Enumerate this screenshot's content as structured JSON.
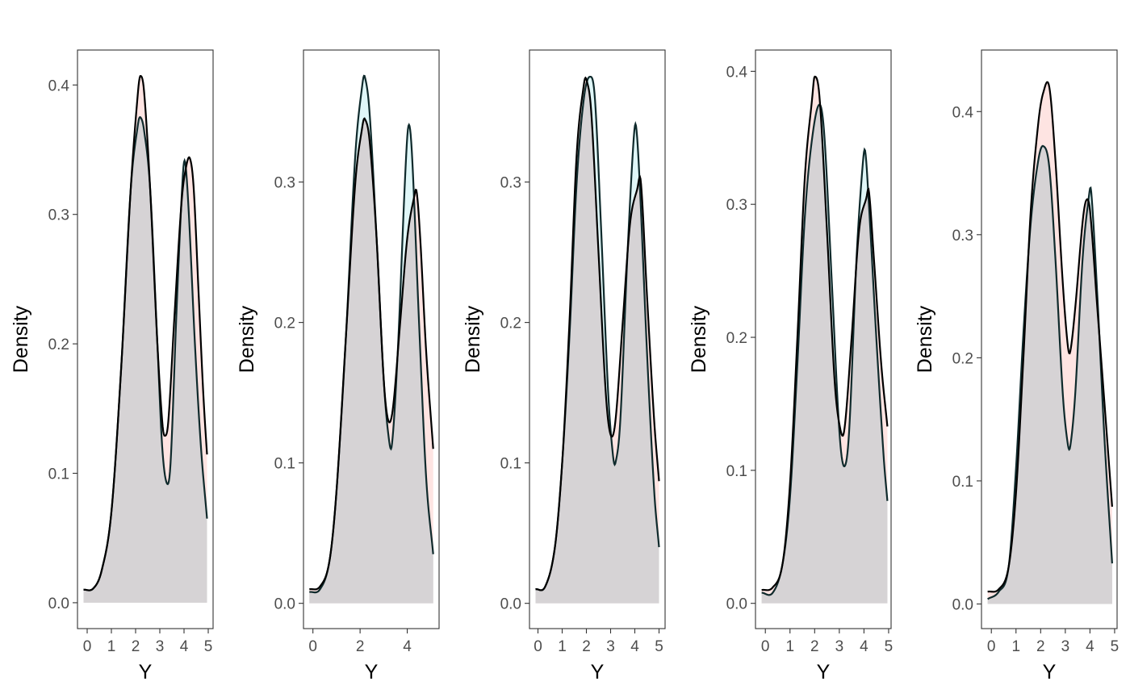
{
  "colors": {
    "fill_a": "#F8766D",
    "fill_b": "#00BFC4",
    "overlap": "#d6d3d5",
    "curve": "#000000",
    "curve_b": "#0f2a2c",
    "panel_border": "#333333",
    "tick": "#333333"
  },
  "chart_data": [
    {
      "type": "area",
      "xlabel": "Y",
      "ylabel": "Density",
      "xlim": [
        -0.4,
        5.2
      ],
      "ylim": [
        -0.02,
        0.427
      ],
      "x_ticks": [
        "0",
        "1",
        "2",
        "3",
        "4",
        "5"
      ],
      "y_ticks": [
        "0.0",
        "0.1",
        "0.2",
        "0.3",
        "0.4"
      ],
      "series": [
        {
          "points": [
            [
              -0.15,
              0.01
            ],
            [
              0.25,
              0.011
            ],
            [
              0.6,
              0.025
            ],
            [
              1.0,
              0.07
            ],
            [
              1.4,
              0.18
            ],
            [
              1.8,
              0.32
            ],
            [
              2.1,
              0.395
            ],
            [
              2.2,
              0.407
            ],
            [
              2.35,
              0.395
            ],
            [
              2.6,
              0.32
            ],
            [
              2.9,
              0.2
            ],
            [
              3.1,
              0.14
            ],
            [
              3.2,
              0.129
            ],
            [
              3.35,
              0.14
            ],
            [
              3.6,
              0.22
            ],
            [
              3.9,
              0.31
            ],
            [
              4.1,
              0.338
            ],
            [
              4.25,
              0.343
            ],
            [
              4.4,
              0.32
            ],
            [
              4.6,
              0.24
            ],
            [
              4.8,
              0.16
            ],
            [
              5.0,
              0.1
            ]
          ]
        },
        {
          "points": [
            [
              -0.15,
              0.01
            ],
            [
              0.25,
              0.011
            ],
            [
              0.6,
              0.025
            ],
            [
              1.0,
              0.07
            ],
            [
              1.4,
              0.18
            ],
            [
              1.8,
              0.32
            ],
            [
              2.1,
              0.37
            ],
            [
              2.2,
              0.375
            ],
            [
              2.35,
              0.365
            ],
            [
              2.6,
              0.32
            ],
            [
              2.9,
              0.2
            ],
            [
              3.1,
              0.12
            ],
            [
              3.3,
              0.092
            ],
            [
              3.45,
              0.11
            ],
            [
              3.7,
              0.23
            ],
            [
              3.95,
              0.33
            ],
            [
              4.05,
              0.34
            ],
            [
              4.2,
              0.3
            ],
            [
              4.45,
              0.2
            ],
            [
              4.7,
              0.12
            ],
            [
              4.95,
              0.065
            ]
          ]
        }
      ]
    },
    {
      "type": "area",
      "xlabel": "Y",
      "ylabel": "Density",
      "xlim": [
        -0.4,
        5.35
      ],
      "ylim": [
        -0.018,
        0.394
      ],
      "x_ticks": [
        "0",
        "2",
        "4"
      ],
      "y_ticks": [
        "0.0",
        "0.1",
        "0.2",
        "0.3"
      ],
      "series": [
        {
          "points": [
            [
              -0.15,
              0.01
            ],
            [
              0.3,
              0.012
            ],
            [
              0.7,
              0.03
            ],
            [
              1.0,
              0.08
            ],
            [
              1.4,
              0.19
            ],
            [
              1.8,
              0.3
            ],
            [
              2.1,
              0.34
            ],
            [
              2.2,
              0.345
            ],
            [
              2.4,
              0.33
            ],
            [
              2.7,
              0.26
            ],
            [
              3.0,
              0.16
            ],
            [
              3.2,
              0.13
            ],
            [
              3.4,
              0.14
            ],
            [
              3.7,
              0.2
            ],
            [
              4.0,
              0.26
            ],
            [
              4.3,
              0.29
            ],
            [
              4.4,
              0.293
            ],
            [
              4.55,
              0.26
            ],
            [
              4.8,
              0.18
            ],
            [
              5.1,
              0.11
            ]
          ]
        },
        {
          "points": [
            [
              -0.15,
              0.008
            ],
            [
              0.3,
              0.01
            ],
            [
              0.7,
              0.03
            ],
            [
              1.0,
              0.08
            ],
            [
              1.4,
              0.19
            ],
            [
              1.8,
              0.32
            ],
            [
              2.1,
              0.37
            ],
            [
              2.2,
              0.375
            ],
            [
              2.4,
              0.35
            ],
            [
              2.7,
              0.26
            ],
            [
              3.0,
              0.16
            ],
            [
              3.2,
              0.12
            ],
            [
              3.35,
              0.113
            ],
            [
              3.6,
              0.18
            ],
            [
              3.9,
              0.3
            ],
            [
              4.05,
              0.34
            ],
            [
              4.2,
              0.32
            ],
            [
              4.5,
              0.2
            ],
            [
              4.8,
              0.09
            ],
            [
              5.1,
              0.035
            ]
          ]
        }
      ]
    },
    {
      "type": "area",
      "xlabel": "Y",
      "ylabel": "Density",
      "xlim": [
        -0.35,
        5.25
      ],
      "ylim": [
        -0.018,
        0.394
      ],
      "x_ticks": [
        "0",
        "1",
        "2",
        "3",
        "4",
        "5"
      ],
      "y_ticks": [
        "0.0",
        "0.1",
        "0.2",
        "0.3"
      ],
      "series": [
        {
          "points": [
            [
              -0.1,
              0.01
            ],
            [
              0.3,
              0.012
            ],
            [
              0.7,
              0.04
            ],
            [
              1.0,
              0.1
            ],
            [
              1.3,
              0.2
            ],
            [
              1.6,
              0.32
            ],
            [
              1.9,
              0.37
            ],
            [
              2.0,
              0.373
            ],
            [
              2.2,
              0.35
            ],
            [
              2.5,
              0.25
            ],
            [
              2.8,
              0.15
            ],
            [
              3.0,
              0.12
            ],
            [
              3.2,
              0.13
            ],
            [
              3.5,
              0.2
            ],
            [
              3.8,
              0.27
            ],
            [
              4.1,
              0.295
            ],
            [
              4.25,
              0.3
            ],
            [
              4.5,
              0.22
            ],
            [
              4.8,
              0.13
            ],
            [
              5.0,
              0.087
            ]
          ]
        },
        {
          "points": [
            [
              -0.1,
              0.01
            ],
            [
              0.3,
              0.012
            ],
            [
              0.7,
              0.04
            ],
            [
              1.0,
              0.1
            ],
            [
              1.3,
              0.19
            ],
            [
              1.6,
              0.3
            ],
            [
              1.9,
              0.36
            ],
            [
              2.15,
              0.375
            ],
            [
              2.35,
              0.36
            ],
            [
              2.6,
              0.27
            ],
            [
              2.9,
              0.15
            ],
            [
              3.1,
              0.105
            ],
            [
              3.2,
              0.1
            ],
            [
              3.4,
              0.13
            ],
            [
              3.7,
              0.25
            ],
            [
              3.95,
              0.33
            ],
            [
              4.05,
              0.34
            ],
            [
              4.2,
              0.3
            ],
            [
              4.5,
              0.18
            ],
            [
              4.8,
              0.08
            ],
            [
              5.0,
              0.04
            ]
          ]
        }
      ]
    },
    {
      "type": "area",
      "xlabel": "Y",
      "ylabel": "Density",
      "xlim": [
        -0.4,
        5.1
      ],
      "ylim": [
        -0.019,
        0.416
      ],
      "x_ticks": [
        "0",
        "1",
        "2",
        "3",
        "4",
        "5"
      ],
      "y_ticks": [
        "0.0",
        "0.1",
        "0.2",
        "0.3",
        "0.4"
      ],
      "series": [
        {
          "points": [
            [
              -0.15,
              0.01
            ],
            [
              0.3,
              0.012
            ],
            [
              0.7,
              0.03
            ],
            [
              1.0,
              0.09
            ],
            [
              1.3,
              0.2
            ],
            [
              1.6,
              0.32
            ],
            [
              1.9,
              0.38
            ],
            [
              2.0,
              0.396
            ],
            [
              2.2,
              0.38
            ],
            [
              2.5,
              0.28
            ],
            [
              2.8,
              0.17
            ],
            [
              3.0,
              0.135
            ],
            [
              3.2,
              0.13
            ],
            [
              3.5,
              0.2
            ],
            [
              3.8,
              0.28
            ],
            [
              4.1,
              0.305
            ],
            [
              4.2,
              0.31
            ],
            [
              4.4,
              0.26
            ],
            [
              4.7,
              0.18
            ],
            [
              4.95,
              0.133
            ]
          ]
        },
        {
          "points": [
            [
              -0.15,
              0.008
            ],
            [
              0.3,
              0.008
            ],
            [
              0.7,
              0.03
            ],
            [
              1.0,
              0.08
            ],
            [
              1.3,
              0.18
            ],
            [
              1.6,
              0.29
            ],
            [
              1.9,
              0.35
            ],
            [
              2.2,
              0.375
            ],
            [
              2.4,
              0.35
            ],
            [
              2.7,
              0.24
            ],
            [
              3.0,
              0.13
            ],
            [
              3.2,
              0.103
            ],
            [
              3.4,
              0.13
            ],
            [
              3.7,
              0.26
            ],
            [
              3.95,
              0.33
            ],
            [
              4.05,
              0.34
            ],
            [
              4.2,
              0.3
            ],
            [
              4.5,
              0.2
            ],
            [
              4.8,
              0.11
            ],
            [
              4.95,
              0.077
            ]
          ]
        }
      ]
    },
    {
      "type": "area",
      "xlabel": "Y",
      "ylabel": "Density",
      "xlim": [
        -0.4,
        5.1
      ],
      "ylim": [
        -0.02,
        0.45
      ],
      "x_ticks": [
        "0",
        "1",
        "2",
        "3",
        "4",
        "5"
      ],
      "y_ticks": [
        "0.0",
        "0.1",
        "0.2",
        "0.3",
        "0.4"
      ],
      "series": [
        {
          "points": [
            [
              -0.15,
              0.01
            ],
            [
              0.3,
              0.012
            ],
            [
              0.7,
              0.03
            ],
            [
              1.0,
              0.09
            ],
            [
              1.3,
              0.2
            ],
            [
              1.6,
              0.32
            ],
            [
              1.9,
              0.39
            ],
            [
              2.1,
              0.415
            ],
            [
              2.35,
              0.42
            ],
            [
              2.6,
              0.36
            ],
            [
              2.9,
              0.26
            ],
            [
              3.1,
              0.21
            ],
            [
              3.2,
              0.205
            ],
            [
              3.4,
              0.24
            ],
            [
              3.7,
              0.31
            ],
            [
              3.85,
              0.328
            ],
            [
              4.0,
              0.32
            ],
            [
              4.3,
              0.24
            ],
            [
              4.6,
              0.16
            ],
            [
              4.9,
              0.079
            ]
          ]
        },
        {
          "points": [
            [
              -0.15,
              0.004
            ],
            [
              0.3,
              0.01
            ],
            [
              0.7,
              0.03
            ],
            [
              1.0,
              0.11
            ],
            [
              1.3,
              0.22
            ],
            [
              1.6,
              0.31
            ],
            [
              1.9,
              0.36
            ],
            [
              2.1,
              0.372
            ],
            [
              2.35,
              0.355
            ],
            [
              2.6,
              0.28
            ],
            [
              2.9,
              0.17
            ],
            [
              3.1,
              0.13
            ],
            [
              3.2,
              0.128
            ],
            [
              3.4,
              0.17
            ],
            [
              3.7,
              0.28
            ],
            [
              3.95,
              0.33
            ],
            [
              4.05,
              0.335
            ],
            [
              4.3,
              0.25
            ],
            [
              4.6,
              0.13
            ],
            [
              4.9,
              0.033
            ]
          ]
        }
      ]
    }
  ]
}
